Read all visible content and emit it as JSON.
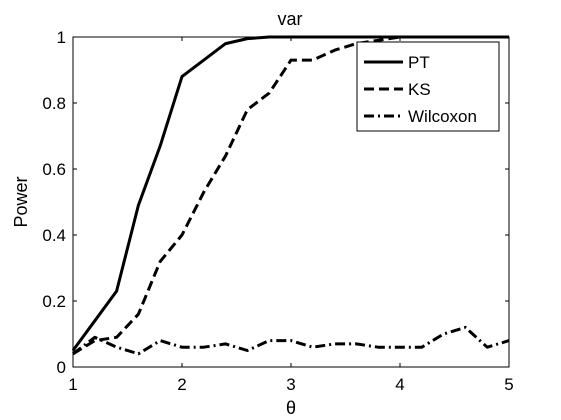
{
  "chart_data": {
    "type": "line",
    "title": "var",
    "xlabel": "θ",
    "ylabel": "Power",
    "xlim": [
      1,
      5
    ],
    "ylim": [
      0,
      1
    ],
    "xticks": [
      "1",
      "2",
      "3",
      "4",
      "5"
    ],
    "yticks": [
      "0",
      "0.2",
      "0.4",
      "0.6",
      "0.8",
      "1"
    ],
    "grid": false,
    "legend_position": "top-right",
    "series": [
      {
        "name": "PT",
        "style": "solid",
        "color": "#000000",
        "x": [
          1.0,
          1.2,
          1.4,
          1.6,
          1.8,
          2.0,
          2.2,
          2.4,
          2.6,
          2.8,
          3.0,
          3.2,
          3.4,
          3.6,
          3.8,
          4.0,
          4.2,
          4.4,
          4.6,
          4.8,
          5.0
        ],
        "y": [
          0.05,
          0.14,
          0.23,
          0.49,
          0.67,
          0.88,
          0.93,
          0.98,
          0.995,
          1.0,
          1.0,
          1.0,
          1.0,
          1.0,
          1.0,
          1.0,
          1.0,
          1.0,
          1.0,
          1.0,
          1.0
        ]
      },
      {
        "name": "KS",
        "style": "dashed",
        "color": "#000000",
        "x": [
          1.0,
          1.2,
          1.4,
          1.6,
          1.8,
          2.0,
          2.2,
          2.4,
          2.6,
          2.8,
          3.0,
          3.2,
          3.4,
          3.6,
          3.8,
          4.0,
          4.2,
          4.4,
          4.6,
          4.8,
          5.0
        ],
        "y": [
          0.04,
          0.08,
          0.09,
          0.16,
          0.32,
          0.4,
          0.53,
          0.64,
          0.78,
          0.83,
          0.93,
          0.93,
          0.96,
          0.98,
          0.99,
          1.0,
          1.0,
          1.0,
          1.0,
          1.0,
          1.0
        ]
      },
      {
        "name": "Wilcoxon",
        "style": "dash-dot",
        "color": "#000000",
        "x": [
          1.0,
          1.2,
          1.4,
          1.6,
          1.8,
          2.0,
          2.2,
          2.4,
          2.6,
          2.8,
          3.0,
          3.2,
          3.4,
          3.6,
          3.8,
          4.0,
          4.2,
          4.4,
          4.6,
          4.8,
          5.0
        ],
        "y": [
          0.04,
          0.09,
          0.06,
          0.04,
          0.08,
          0.06,
          0.06,
          0.07,
          0.05,
          0.08,
          0.08,
          0.06,
          0.07,
          0.07,
          0.06,
          0.06,
          0.06,
          0.1,
          0.12,
          0.06,
          0.08
        ]
      }
    ]
  }
}
